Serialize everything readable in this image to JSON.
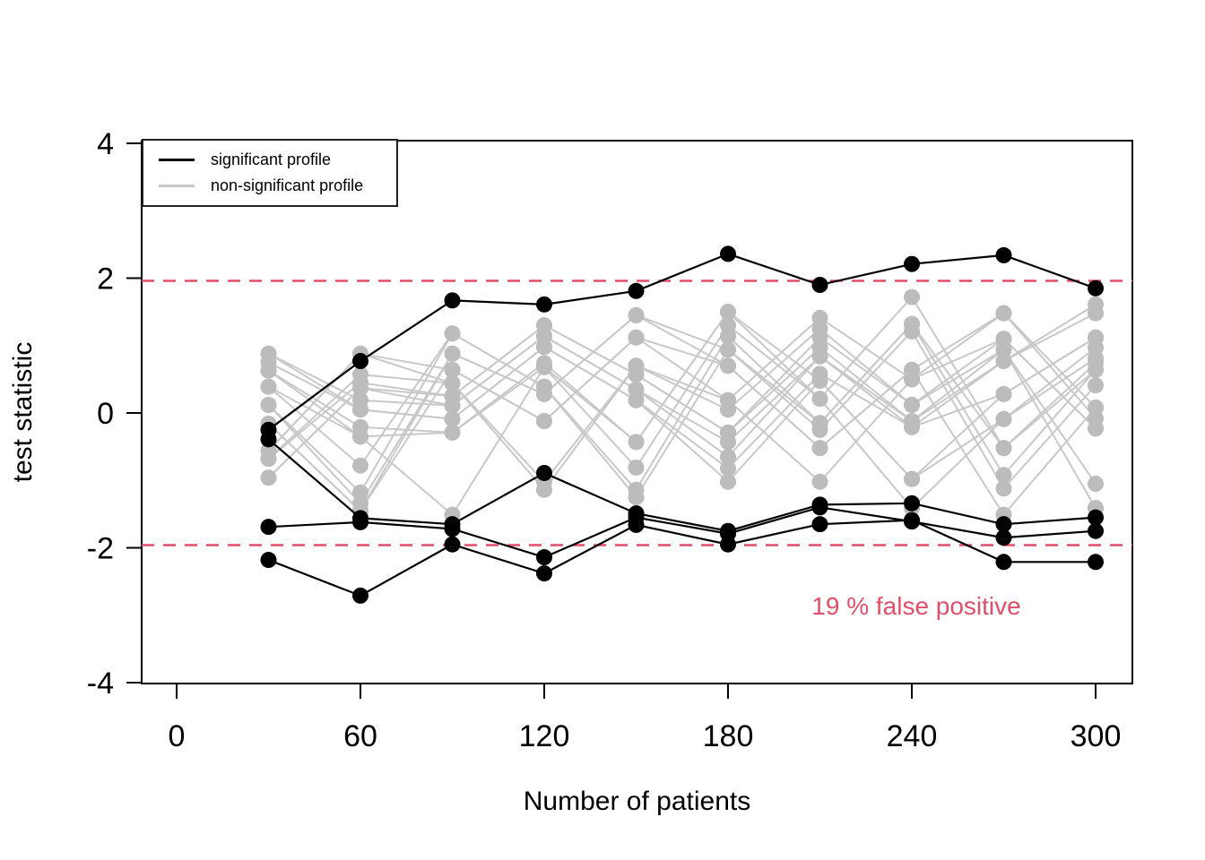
{
  "chart_data": {
    "type": "line",
    "title": "",
    "xlabel": "Number of patients",
    "ylabel": "test statistic",
    "x_ticks": [
      0,
      60,
      120,
      180,
      240,
      300
    ],
    "y_ticks": [
      -4,
      -2,
      0,
      2,
      4
    ],
    "xlim": [
      -12,
      312
    ],
    "ylim": [
      -4.03,
      4.03
    ],
    "grid": false,
    "x": [
      30,
      60,
      90,
      120,
      150,
      180,
      210,
      240,
      270,
      300
    ],
    "thresholds": {
      "values": [
        1.96,
        -1.96
      ],
      "style": "dashed",
      "color": "#e04f68"
    },
    "legend": {
      "position": "topleft",
      "items": [
        {
          "label": "significant profile",
          "color": "#000000"
        },
        {
          "label": "non-significant profile",
          "color": "#c8c8c8"
        }
      ]
    },
    "annotation": {
      "text": "19 % false positive",
      "x": 241,
      "y": -2.87,
      "color": "#e04f68"
    },
    "colors": {
      "significant": "#000000",
      "nonsignificant_line": "#c8c8c8",
      "nonsignificant_point": "#bcbcbc",
      "axis": "#000000"
    },
    "significant_series": [
      {
        "name": "significant-1",
        "values": [
          -0.25,
          0.77,
          1.67,
          1.61,
          1.81,
          2.36,
          1.9,
          2.21,
          2.34,
          1.85
        ]
      },
      {
        "name": "significant-2",
        "values": [
          -0.39,
          -1.56,
          -1.65,
          -0.89,
          -1.49,
          -1.75,
          -1.36,
          -1.34,
          -1.65,
          -1.55
        ]
      },
      {
        "name": "significant-3",
        "values": [
          -1.69,
          -1.62,
          -1.72,
          -2.14,
          -1.55,
          -1.79,
          -1.4,
          -1.61,
          -1.85,
          -1.75
        ]
      },
      {
        "name": "significant-4",
        "values": [
          -2.18,
          -2.71,
          -1.95,
          -2.38,
          -1.66,
          -1.95,
          -1.65,
          -1.59,
          -2.21,
          -2.21
        ]
      }
    ],
    "nonsignificant_series": [
      [
        0.88,
        0.19,
        0.11,
        1.14,
        0.35,
        -0.65,
        0.84,
        -0.21,
        0.77,
        1.48
      ],
      [
        0.88,
        0.05,
        -0.09,
        0.98,
        0.19,
        -0.82,
        0.58,
        -0.21,
        0.28,
        1.12
      ],
      [
        0.75,
        0.05,
        -0.09,
        0.98,
        0.19,
        -1.02,
        0.48,
        -0.98,
        0.28,
        1.12
      ],
      [
        0.63,
        -0.21,
        -0.29,
        0.74,
        -0.43,
        1.5,
        0.48,
        -0.98,
        -0.09,
        0.97
      ],
      [
        0.63,
        -0.35,
        -0.29,
        0.68,
        -0.43,
        1.5,
        0.21,
        -1.41,
        -0.09,
        0.81
      ],
      [
        0.39,
        -0.35,
        -1.51,
        0.68,
        -0.81,
        1.3,
        0.21,
        1.72,
        -0.52,
        0.74
      ],
      [
        0.39,
        -0.78,
        1.18,
        0.39,
        -1.14,
        1.14,
        -0.15,
        1.32,
        -0.52,
        0.64
      ],
      [
        0.12,
        -1.18,
        1.18,
        0.39,
        -1.25,
        0.94,
        -0.15,
        1.32,
        -0.92,
        0.64
      ],
      [
        0.12,
        -1.34,
        0.88,
        0.28,
        1.45,
        0.94,
        -0.25,
        1.21,
        -1.12,
        0.41
      ],
      [
        -0.16,
        -1.45,
        0.88,
        0.28,
        1.45,
        0.7,
        -0.52,
        0.64,
        -1.51,
        0.08
      ],
      [
        -0.16,
        -1.45,
        0.64,
        -0.12,
        1.12,
        0.7,
        -0.52,
        0.64,
        1.48,
        0.08
      ],
      [
        -0.56,
        0.88,
        0.64,
        -0.12,
        1.12,
        0.19,
        -1.02,
        0.5,
        1.48,
        -0.08
      ],
      [
        -0.56,
        0.88,
        0.44,
        -1.02,
        0.7,
        0.19,
        1.41,
        0.5,
        1.1,
        -0.23
      ],
      [
        -0.68,
        0.57,
        0.44,
        -1.14,
        0.7,
        0.05,
        1.25,
        0.12,
        1.1,
        -0.23
      ],
      [
        -0.68,
        0.45,
        0.25,
        1.3,
        0.57,
        -0.29,
        1.12,
        0.12,
        0.94,
        -1.05
      ],
      [
        -0.96,
        0.37,
        0.25,
        1.3,
        0.57,
        -0.29,
        0.97,
        -0.12,
        0.94,
        -1.41
      ],
      [
        -0.96,
        0.37,
        0.11,
        1.14,
        0.35,
        -0.43,
        0.84,
        -0.12,
        0.77,
        1.61
      ]
    ]
  }
}
